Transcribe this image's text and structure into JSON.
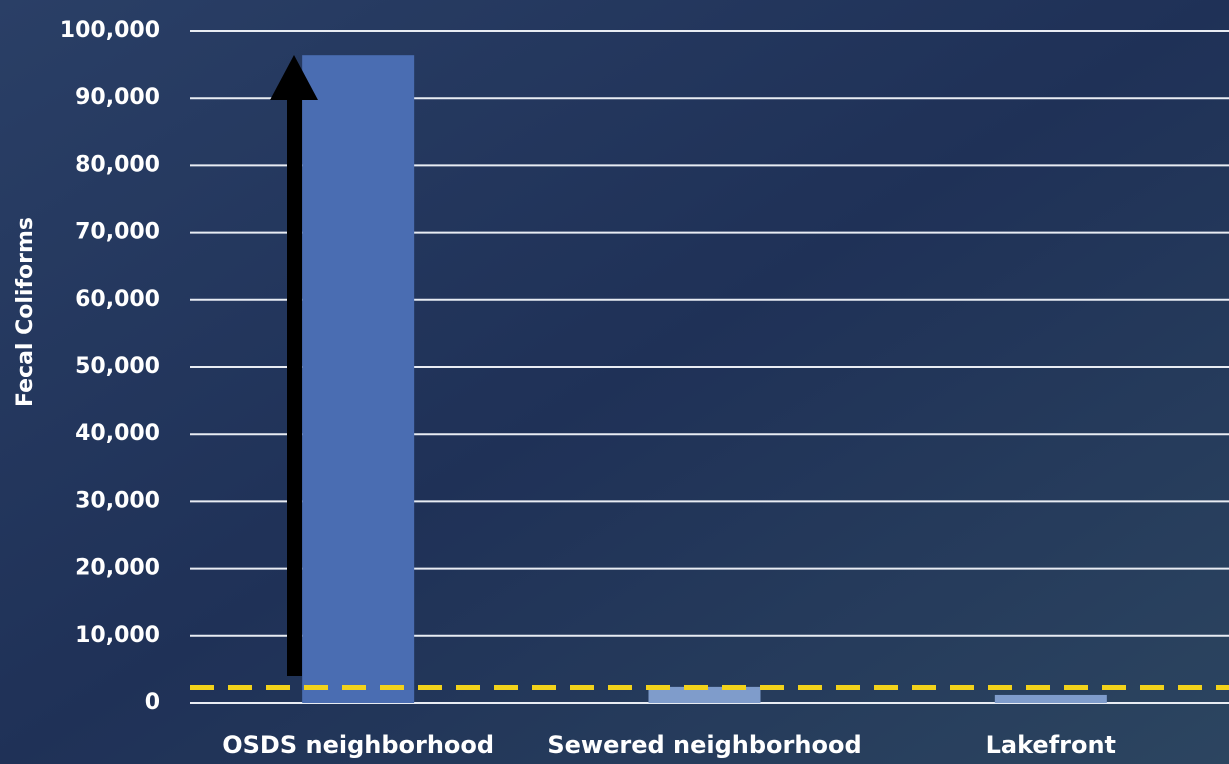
{
  "chart_data": {
    "type": "bar",
    "y_label": "Fecal Coliforms",
    "categories": [
      "OSDS neighborhood",
      "Sewered neighborhood",
      "Lakefront"
    ],
    "values": [
      96400,
      2400,
      1200
    ],
    "colors": [
      "#4a6db2",
      "#7f9ccb",
      "#7f9ccb"
    ],
    "threshold": 2300,
    "threshold_color": "#f2d21b",
    "ylim": [
      0,
      100000
    ],
    "yticks": [
      0,
      {
        "value": 10000,
        "label": "10,000"
      },
      {
        "value": 20000,
        "label": "20,000"
      },
      {
        "value": 30000,
        "label": "30,000"
      },
      {
        "value": 40000,
        "label": "40,000"
      },
      {
        "value": 50000,
        "label": "50,000"
      },
      {
        "value": 60000,
        "label": "60,000"
      },
      {
        "value": 70000,
        "label": "70,000"
      },
      {
        "value": 80000,
        "label": "80,000"
      },
      {
        "value": 90000,
        "label": "90,000"
      },
      {
        "value": 100000,
        "label": "100,000"
      }
    ],
    "grid": true
  }
}
